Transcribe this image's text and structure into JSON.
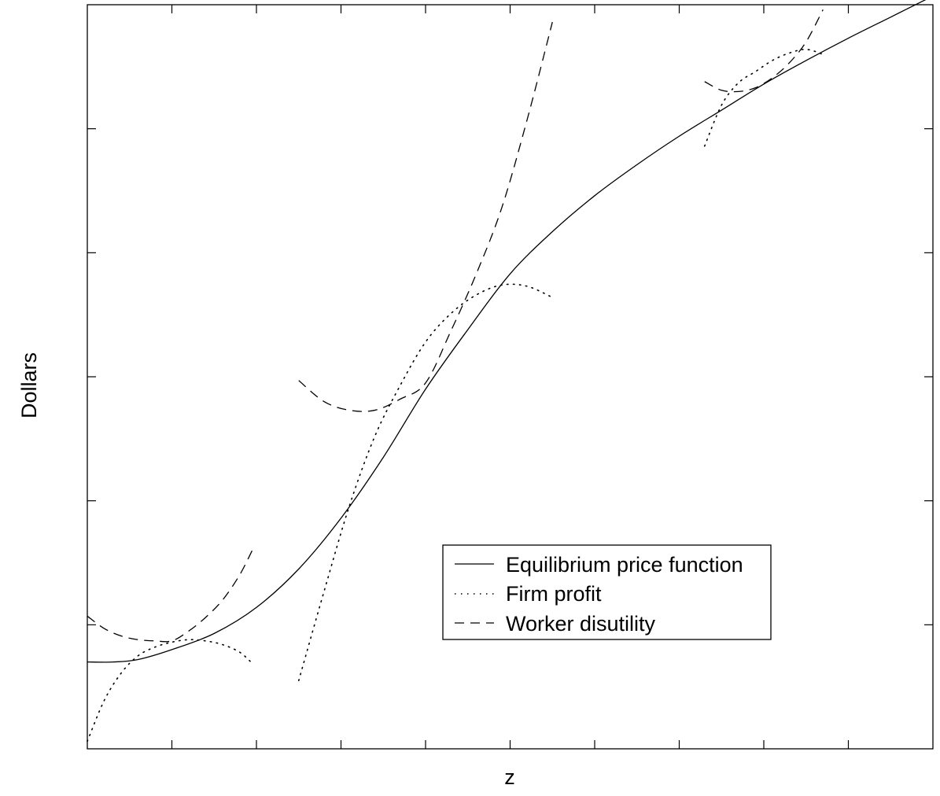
{
  "chart_data": {
    "type": "line",
    "title": "",
    "xlabel": "z",
    "ylabel": "Dollars",
    "xlim": [
      0,
      10
    ],
    "ylim": [
      0,
      6
    ],
    "x_ticks": 10,
    "y_ticks": 6,
    "grid": false,
    "legend_position": "lower-right",
    "legend": [
      {
        "label": "Equilibrium price function",
        "style": "solid"
      },
      {
        "label": "Firm profit",
        "style": "dotted"
      },
      {
        "label": "Worker disutility",
        "style": "dashed"
      }
    ],
    "series": [
      {
        "name": "Equilibrium price function",
        "style": "solid",
        "x": [
          0.0,
          0.3,
          0.6,
          1.0,
          1.5,
          2.0,
          2.5,
          3.0,
          3.5,
          4.0,
          4.5,
          5.0,
          5.5,
          6.0,
          6.5,
          7.0,
          7.5,
          8.0,
          8.5,
          9.0,
          9.5,
          10.0
        ],
        "y": [
          0.7,
          0.7,
          0.72,
          0.8,
          0.93,
          1.14,
          1.45,
          1.86,
          2.35,
          2.9,
          3.38,
          3.83,
          4.17,
          4.46,
          4.71,
          4.94,
          5.15,
          5.36,
          5.55,
          5.73,
          5.9,
          6.07
        ]
      },
      {
        "name": "Firm profit",
        "style": "dotted",
        "groups": [
          {
            "x": [
              0.0,
              0.2,
              0.4,
              0.6,
              0.8,
              1.0,
              1.2,
              1.4,
              1.6,
              1.8,
              1.95
            ],
            "y": [
              0.06,
              0.39,
              0.61,
              0.75,
              0.82,
              0.86,
              0.88,
              0.87,
              0.84,
              0.78,
              0.69
            ]
          },
          {
            "x": [
              2.5,
              2.8,
              3.1,
              3.4,
              3.7,
              4.0,
              4.3,
              4.6,
              4.9,
              5.2,
              5.5
            ],
            "y": [
              0.55,
              1.27,
              1.96,
              2.52,
              2.93,
              3.28,
              3.51,
              3.66,
              3.74,
              3.73,
              3.64
            ]
          },
          {
            "x": [
              7.3,
              7.5,
              7.7,
              7.9,
              8.1,
              8.3,
              8.5,
              8.7
            ],
            "y": [
              4.86,
              5.19,
              5.37,
              5.46,
              5.55,
              5.61,
              5.64,
              5.6
            ]
          }
        ]
      },
      {
        "name": "Worker disutility",
        "style": "dashed",
        "groups": [
          {
            "x": [
              0.0,
              0.2,
              0.4,
              0.6,
              0.8,
              1.0,
              1.2,
              1.4,
              1.6,
              1.8,
              1.95
            ],
            "y": [
              1.07,
              0.97,
              0.91,
              0.88,
              0.87,
              0.87,
              0.95,
              1.06,
              1.2,
              1.4,
              1.6
            ]
          },
          {
            "x": [
              2.5,
              2.8,
              3.1,
              3.4,
              3.7,
              4.0,
              4.3,
              4.6,
              4.9,
              5.2,
              5.5
            ],
            "y": [
              2.97,
              2.8,
              2.73,
              2.73,
              2.82,
              2.95,
              3.37,
              3.83,
              4.36,
              5.07,
              5.86
            ]
          },
          {
            "x": [
              7.3,
              7.5,
              7.7,
              7.9,
              8.1,
              8.3,
              8.5,
              8.7
            ],
            "y": [
              5.38,
              5.31,
              5.3,
              5.33,
              5.41,
              5.53,
              5.7,
              5.96
            ]
          }
        ]
      }
    ]
  }
}
